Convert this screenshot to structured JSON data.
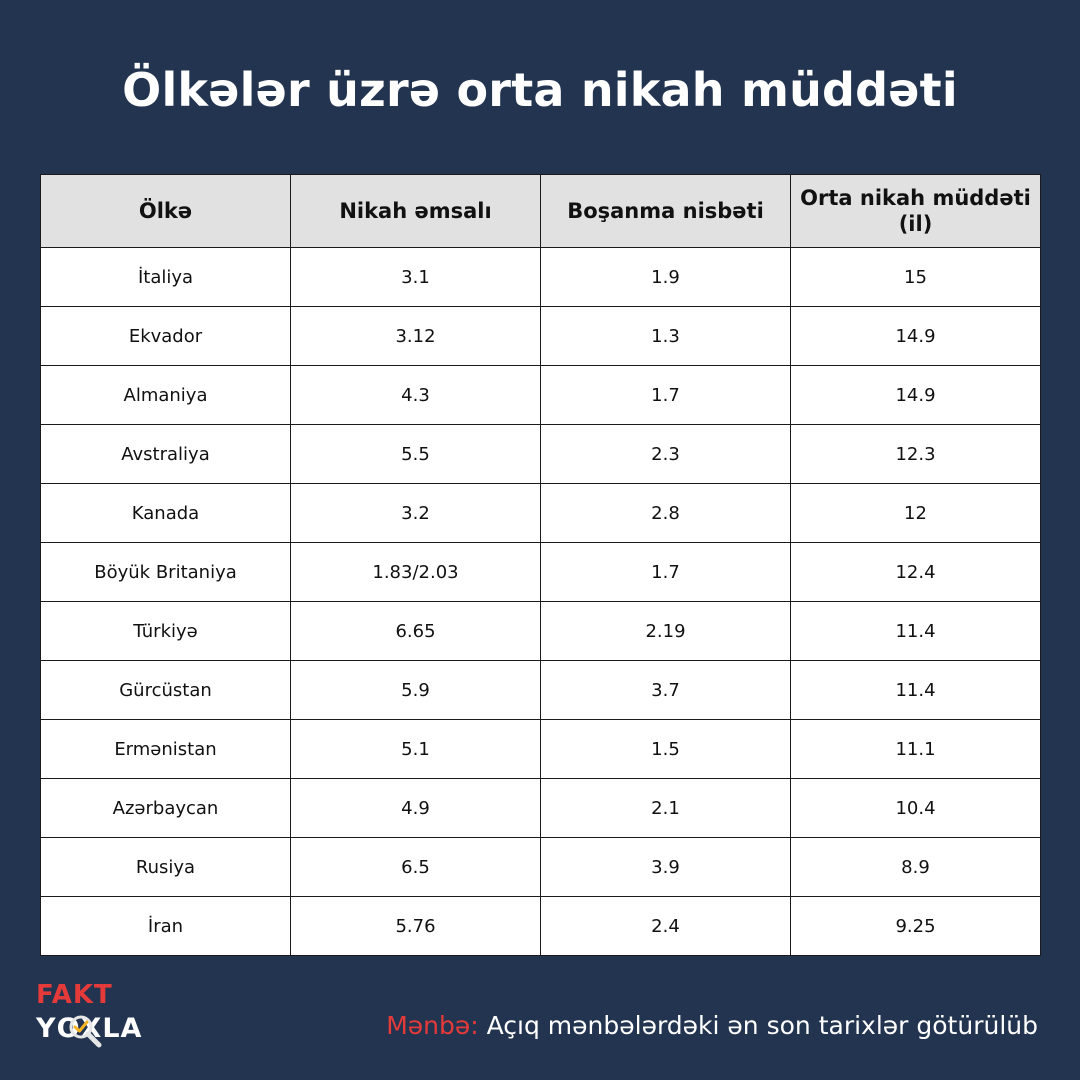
{
  "title": "Ölkələr üzrə orta nikah müddəti",
  "colors": {
    "background": "#22344f",
    "header_bg": "#e1e1e1",
    "accent_red": "#e53a3a"
  },
  "chart_data": {
    "type": "table",
    "title": "Ölkələr üzrə orta nikah müddəti",
    "columns": [
      "Ölkə",
      "Nikah əmsalı",
      "Boşanma nisbəti",
      "Orta nikah müddəti (il)"
    ],
    "rows": [
      [
        "İtaliya",
        "3.1",
        "1.9",
        "15"
      ],
      [
        "Ekvador",
        "3.12",
        "1.3",
        "14.9"
      ],
      [
        "Almaniya",
        "4.3",
        "1.7",
        "14.9"
      ],
      [
        "Avstraliya",
        "5.5",
        "2.3",
        "12.3"
      ],
      [
        "Kanada",
        "3.2",
        "2.8",
        "12"
      ],
      [
        "Böyük Britaniya",
        "1.83/2.03",
        "1.7",
        "12.4"
      ],
      [
        "Türkiyə",
        "6.65",
        "2.19",
        "11.4"
      ],
      [
        "Gürcüstan",
        "5.9",
        "3.7",
        "11.4"
      ],
      [
        "Ermənistan",
        "5.1",
        "1.5",
        "11.1"
      ],
      [
        "Azərbaycan",
        "4.9",
        "2.1",
        "10.4"
      ],
      [
        "Rusiya",
        "6.5",
        "3.9",
        "8.9"
      ],
      [
        "İran",
        "5.76",
        "2.4",
        "9.25"
      ]
    ]
  },
  "logo": {
    "line1": "FAKT",
    "line2_pre": "Y",
    "line2_o": "O",
    "line2_post": "XLA",
    "icon": "magnifier-check-icon"
  },
  "source": {
    "label": "Mənbə:",
    "text": " Açıq mənbələrdəki ən son tarixlər götürülüb"
  }
}
